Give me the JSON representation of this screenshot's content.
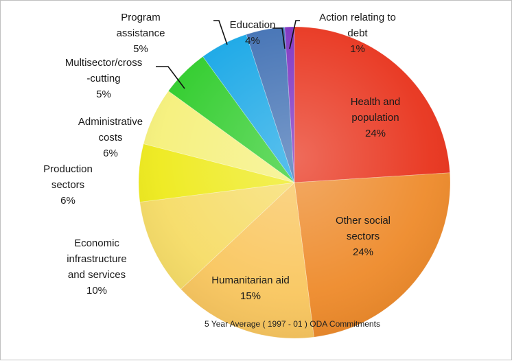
{
  "chart_data": {
    "type": "pie",
    "title": "",
    "caption": "5 Year Average ( 1997 - 01 ) ODA Commitments",
    "slices": [
      {
        "label": [
          "Health and",
          "population",
          "24%"
        ],
        "value": 24,
        "color": "#e8321b"
      },
      {
        "label": [
          "Other social",
          "sectors",
          "24%"
        ],
        "value": 24,
        "color": "#ee8a2a"
      },
      {
        "label": [
          "Humanitarian aid",
          "15%"
        ],
        "value": 15,
        "color": "#f9c65e"
      },
      {
        "label": [
          "Economic",
          "infrastructure",
          "and services",
          "10%"
        ],
        "value": 10,
        "color": "#f6dc66"
      },
      {
        "label": [
          "Production",
          "sectors",
          "6%"
        ],
        "value": 6,
        "color": "#eeea1b"
      },
      {
        "label": [
          "Administrative",
          "costs",
          "6%"
        ],
        "value": 6,
        "color": "#f5f07a"
      },
      {
        "label": [
          "Multisector/cross",
          "-cutting",
          "5%"
        ],
        "value": 5,
        "color": "#2ecc2a"
      },
      {
        "label": [
          "Program",
          "assistance",
          "5%"
        ],
        "value": 5,
        "color": "#15a6e6"
      },
      {
        "label": [
          "Education",
          "4%"
        ],
        "value": 4,
        "color": "#3f6fb3"
      },
      {
        "label": [
          "Action relating to",
          "debt",
          "1%"
        ],
        "value": 1,
        "color": "#7b2fc0"
      }
    ]
  }
}
